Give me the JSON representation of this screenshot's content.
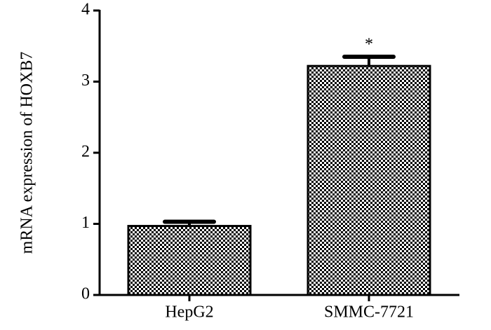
{
  "chart_data": {
    "type": "bar",
    "y_label": "mRNA expression of HOXB7",
    "categories": [
      "HepG2",
      "SMMC-7721"
    ],
    "values": [
      0.97,
      3.22
    ],
    "errors": [
      0.06,
      0.13
    ],
    "color": "#000000",
    "ylim": [
      0,
      4
    ],
    "yticks": [
      0,
      1,
      2,
      3,
      4
    ],
    "grid": false,
    "annotations": [
      {
        "text": "*",
        "category": "SMMC-7721"
      }
    ]
  }
}
